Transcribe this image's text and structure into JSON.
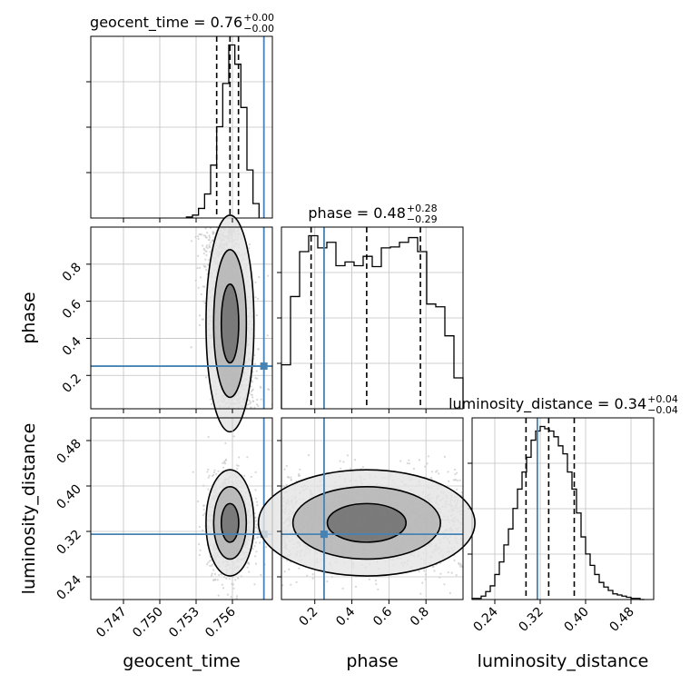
{
  "chart_data": {
    "type": "corner",
    "params": [
      "geocent_time",
      "phase",
      "luminosity_distance"
    ],
    "axis_labels": [
      "geocent_time",
      "phase",
      "luminosity_distance"
    ],
    "ranges": {
      "geocent_time": [
        0.7443,
        0.7593
      ],
      "phase": [
        0.02,
        1.0
      ],
      "luminosity_distance": [
        0.2,
        0.52
      ]
    },
    "ticks": {
      "geocent_time": [
        "0.747",
        "0.750",
        "0.753",
        "0.756"
      ],
      "phase": [
        "0.2",
        "0.4",
        "0.6",
        "0.8"
      ],
      "luminosity_distance": [
        "0.24",
        "0.32",
        "0.40",
        "0.48"
      ]
    },
    "titles": [
      {
        "param": "geocent_time",
        "base": "geocent_time = 0.76",
        "plus": "+0.00",
        "minus": "−0.00"
      },
      {
        "param": "phase",
        "base": "phase = 0.48",
        "plus": "+0.28",
        "minus": "−0.29"
      },
      {
        "param": "luminosity_distance",
        "base": "luminosity_distance = 0.34",
        "plus": "+0.04",
        "minus": "−0.04"
      }
    ],
    "truths": {
      "geocent_time": 0.7586,
      "phase": 0.25,
      "luminosity_distance": 0.315
    },
    "quantiles": {
      "geocent_time": [
        0.7547,
        0.7558,
        0.7565
      ],
      "phase": [
        0.18,
        0.48,
        0.77
      ],
      "luminosity_distance": [
        0.295,
        0.335,
        0.38
      ]
    },
    "histograms": {
      "geocent_time": {
        "edges": [
          0.7522,
          0.7527,
          0.7532,
          0.7537,
          0.7542,
          0.7547,
          0.7552,
          0.7557,
          0.7562,
          0.7567,
          0.7572,
          0.7577,
          0.7582
        ],
        "counts": [
          1,
          3,
          10,
          25,
          55,
          95,
          140,
          180,
          160,
          115,
          50,
          15
        ]
      },
      "phase": {
        "edges": [
          0.02,
          0.069,
          0.118,
          0.167,
          0.216,
          0.265,
          0.314,
          0.363,
          0.412,
          0.461,
          0.51,
          0.559,
          0.608,
          0.657,
          0.706,
          0.755,
          0.804,
          0.853,
          0.902,
          0.951,
          1.0
        ],
        "counts": [
          47,
          120,
          168,
          185,
          172,
          178,
          153,
          157,
          153,
          163,
          152,
          172,
          173,
          178,
          183,
          168,
          112,
          109,
          78,
          33
        ]
      },
      "luminosity_distance": {
        "edges": [
          0.2,
          0.208,
          0.216,
          0.224,
          0.232,
          0.24,
          0.248,
          0.256,
          0.264,
          0.272,
          0.28,
          0.288,
          0.296,
          0.304,
          0.312,
          0.32,
          0.328,
          0.336,
          0.344,
          0.352,
          0.36,
          0.368,
          0.376,
          0.384,
          0.392,
          0.4,
          0.408,
          0.416,
          0.424,
          0.432,
          0.44,
          0.448,
          0.456,
          0.464,
          0.472,
          0.48,
          0.488,
          0.496,
          0.504
        ],
        "counts": [
          1,
          1,
          3,
          7,
          12,
          22,
          33,
          48,
          62,
          80,
          97,
          112,
          125,
          140,
          148,
          152,
          150,
          148,
          143,
          135,
          128,
          112,
          97,
          76,
          55,
          40,
          30,
          22,
          15,
          11,
          8,
          5,
          4,
          3,
          2,
          1,
          1,
          0
        ]
      }
    },
    "grid": true,
    "truth_color": "#4682b4",
    "line_color": "#000000",
    "scatter_color": "#c8c8c8"
  }
}
